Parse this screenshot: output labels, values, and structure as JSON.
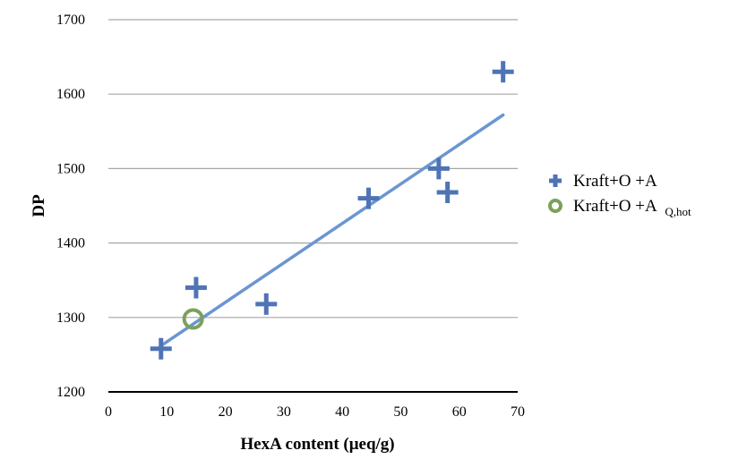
{
  "chart_data": {
    "type": "scatter",
    "title": "",
    "xlabel": "HexA content (μeq/g)",
    "ylabel": "DP",
    "xlim": [
      0,
      70
    ],
    "ylim": [
      1200,
      1700
    ],
    "x_ticks": [
      "0",
      "10",
      "20",
      "30",
      "40",
      "50",
      "60",
      "70"
    ],
    "y_ticks": [
      "1200",
      "1300",
      "1400",
      "1500",
      "1600",
      "1700"
    ],
    "grid": "horizontal",
    "legend_position": "right",
    "series": [
      {
        "name": "Kraft+O +A",
        "legend_main": "Kraft+O +A",
        "legend_sub": "",
        "marker": "plus",
        "color": "#4F74B5",
        "x": [
          9,
          15,
          27,
          44.5,
          56.5,
          58,
          67.5
        ],
        "y": [
          1258,
          1340,
          1318,
          1460,
          1500,
          1468,
          1630
        ]
      },
      {
        "name": "Kraft+O +A Q,hot",
        "legend_main": "Kraft+O +A",
        "legend_sub": "Q,hot",
        "marker": "circle",
        "color": "#7CA05A",
        "x": [
          14.5
        ],
        "y": [
          1298
        ]
      }
    ],
    "trendline": {
      "color": "#6A96D2",
      "x": [
        9,
        67.5
      ],
      "y": [
        1262,
        1572
      ]
    }
  }
}
